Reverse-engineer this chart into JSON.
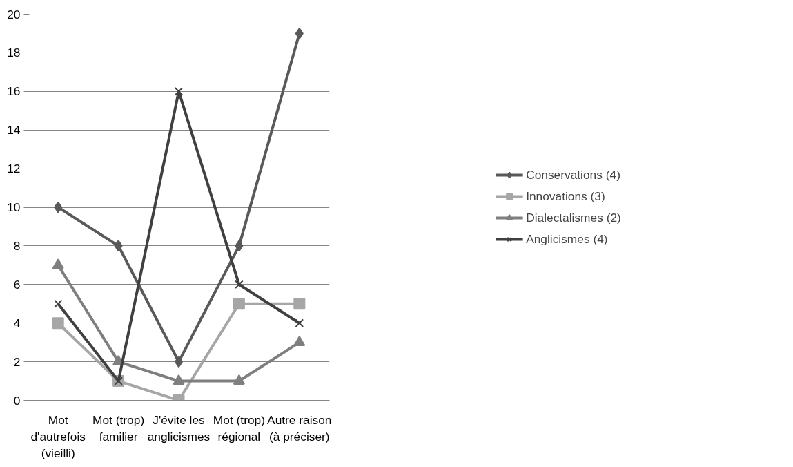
{
  "chart_data": {
    "type": "line",
    "categories": [
      "Mot d'autrefois (vieilli)",
      "Mot (trop) familier",
      "J'évite les anglicismes",
      "Mot (trop) régional",
      "Autre raison (à préciser)"
    ],
    "series": [
      {
        "name": "Conservations (4)",
        "color": "#595959",
        "marker": "diamond",
        "values": [
          10,
          8,
          2,
          8,
          19
        ]
      },
      {
        "name": "Innovations (3)",
        "color": "#a6a6a6",
        "marker": "square",
        "values": [
          4,
          1,
          0,
          5,
          5
        ]
      },
      {
        "name": "Dialectalismes (2)",
        "color": "#7f7f7f",
        "marker": "triangle",
        "values": [
          7,
          2,
          1,
          1,
          3
        ]
      },
      {
        "name": "Anglicismes (4)",
        "color": "#404040",
        "marker": "cross",
        "values": [
          5,
          1,
          16,
          6,
          4
        ]
      }
    ],
    "ylim": [
      0,
      20
    ],
    "yticks": [
      0,
      2,
      4,
      6,
      8,
      10,
      12,
      14,
      16,
      18,
      20
    ],
    "grid": "y",
    "legend": "right",
    "line_style": "solid"
  }
}
